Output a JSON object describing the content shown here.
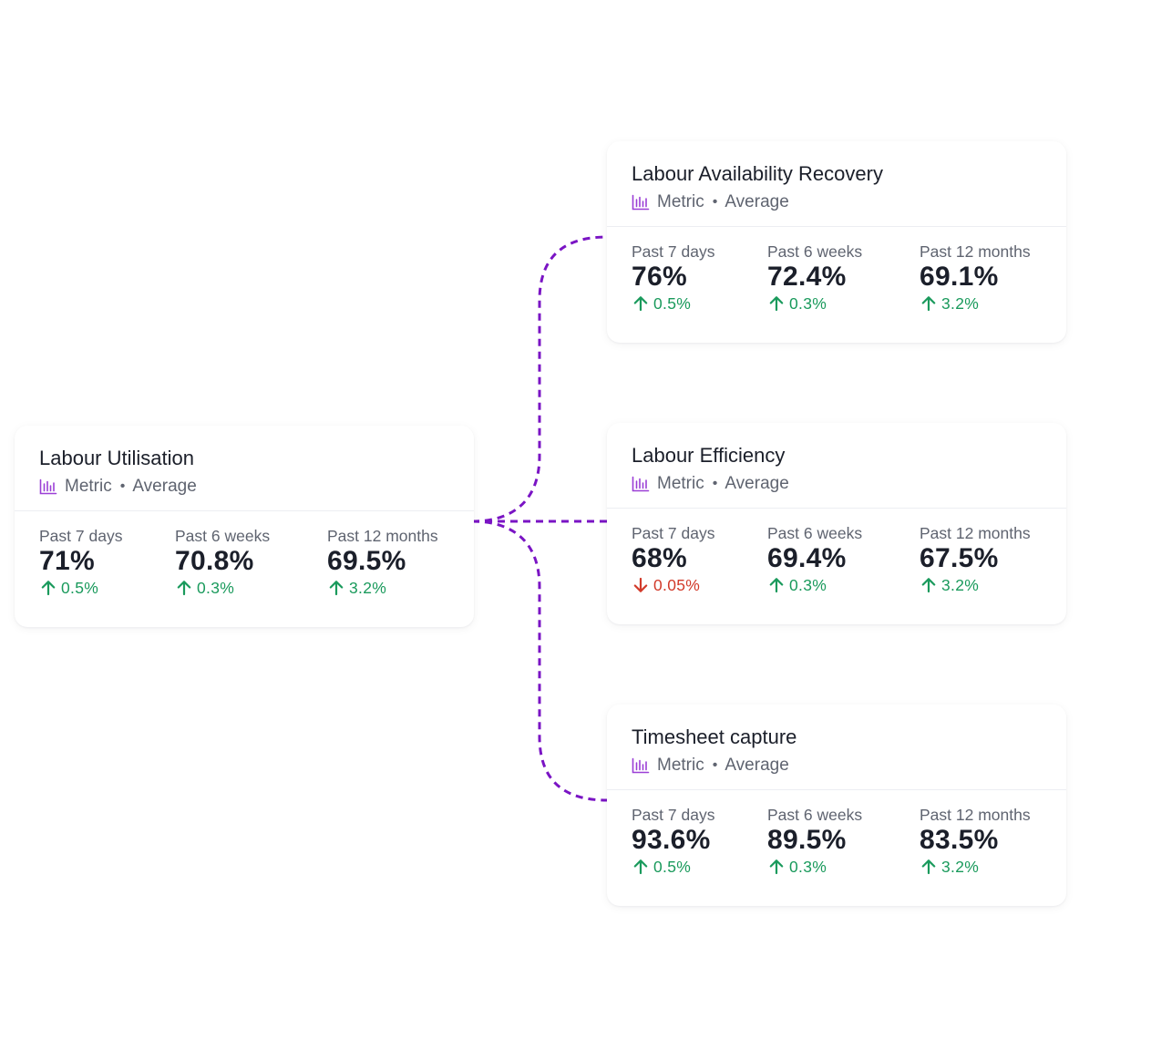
{
  "colors": {
    "connector": "#7a14c4",
    "icon": "#9b3fd6",
    "positive": "#1a9a5c",
    "negative": "#d23a2a"
  },
  "cards": {
    "labour_utilisation": {
      "title": "Labour Utilisation",
      "type": "Metric",
      "aggregation": "Average",
      "stats": [
        {
          "label": "Past 7 days",
          "value": "71%",
          "change": "0.5%",
          "direction": "up"
        },
        {
          "label": "Past 6 weeks",
          "value": "70.8%",
          "change": "0.3%",
          "direction": "up"
        },
        {
          "label": "Past 12 months",
          "value": "69.5%",
          "change": "3.2%",
          "direction": "up"
        }
      ]
    },
    "labour_availability_recovery": {
      "title": "Labour Availability Recovery",
      "type": "Metric",
      "aggregation": "Average",
      "stats": [
        {
          "label": "Past 7 days",
          "value": "76%",
          "change": "0.5%",
          "direction": "up"
        },
        {
          "label": "Past 6 weeks",
          "value": "72.4%",
          "change": "0.3%",
          "direction": "up"
        },
        {
          "label": "Past 12 months",
          "value": "69.1%",
          "change": "3.2%",
          "direction": "up"
        }
      ]
    },
    "labour_efficiency": {
      "title": "Labour Efficiency",
      "type": "Metric",
      "aggregation": "Average",
      "stats": [
        {
          "label": "Past 7 days",
          "value": "68%",
          "change": "0.05%",
          "direction": "down"
        },
        {
          "label": "Past 6 weeks",
          "value": "69.4%",
          "change": "0.3%",
          "direction": "up"
        },
        {
          "label": "Past 12 months",
          "value": "67.5%",
          "change": "3.2%",
          "direction": "up"
        }
      ]
    },
    "timesheet_capture": {
      "title": "Timesheet capture",
      "type": "Metric",
      "aggregation": "Average",
      "stats": [
        {
          "label": "Past 7 days",
          "value": "93.6%",
          "change": "0.5%",
          "direction": "up"
        },
        {
          "label": "Past 6 weeks",
          "value": "89.5%",
          "change": "0.3%",
          "direction": "up"
        },
        {
          "label": "Past 12 months",
          "value": "83.5%",
          "change": "3.2%",
          "direction": "up"
        }
      ]
    }
  }
}
